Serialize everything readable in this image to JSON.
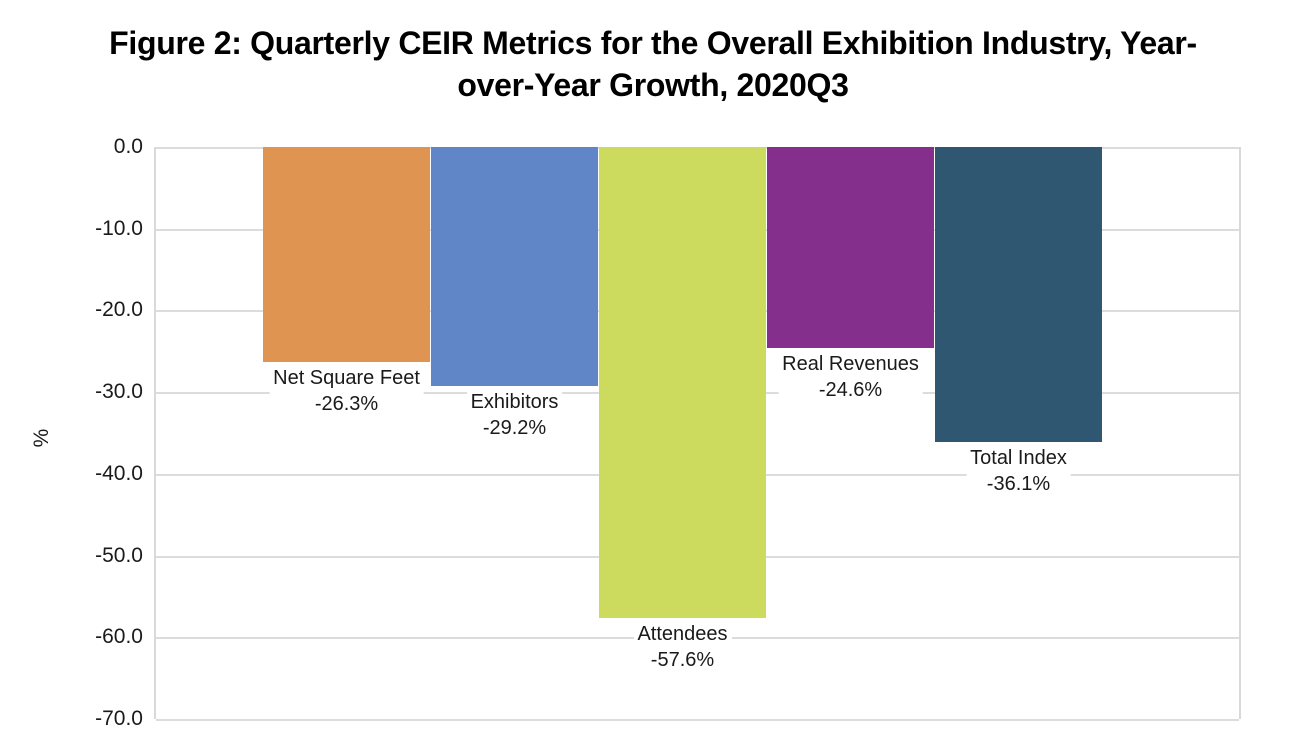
{
  "figure": {
    "title_line1": "Figure 2: Quarterly CEIR Metrics for the Overall Exhibition Industry, Year-",
    "title_line2": "over-Year Growth, 2020Q3"
  },
  "chart_data": {
    "type": "bar",
    "title": "Figure 2: Quarterly CEIR Metrics for the Overall Exhibition Industry, Year-over-Year Growth, 2020Q3",
    "categories": [
      "Net Square Feet",
      "Exhibitors",
      "Attendees",
      "Real Revenues",
      "Total Index"
    ],
    "values": [
      -26.3,
      -29.2,
      -57.6,
      -24.6,
      -36.1
    ],
    "value_labels": [
      "-26.3%",
      "-29.2%",
      "-57.6%",
      "-24.6%",
      "-36.1%"
    ],
    "bar_colors": [
      "#E09452",
      "#6186C7",
      "#CCDA5E",
      "#852F8C",
      "#2F5771"
    ],
    "xlabel": "",
    "ylabel": "%",
    "ylim": [
      -70,
      0
    ],
    "ytick_values": [
      0,
      -10,
      -20,
      -30,
      -40,
      -50,
      -60,
      -70
    ],
    "ytick_labels": [
      "0.0",
      "-10.0",
      "-20.0",
      "-30.0",
      "-40.0",
      "-50.0",
      "-60.0",
      "-70.0"
    ],
    "grid": true,
    "legend": false,
    "gridline_color": "#dcdcdc",
    "text_color": "#1a1a1a",
    "background_color": "#ffffff"
  }
}
